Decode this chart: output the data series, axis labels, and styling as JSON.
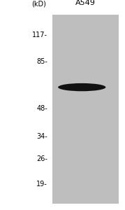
{
  "title": "A549",
  "title_fontsize": 8,
  "kd_label": "(kD)",
  "kd_label_fontsize": 7,
  "markers": [
    117,
    85,
    48,
    34,
    26,
    19
  ],
  "marker_labels": [
    "117-",
    "85-",
    "48-",
    "34-",
    "26-",
    "19-"
  ],
  "marker_fontsize": 7,
  "band_kd": 62,
  "band_color": "#111111",
  "lane_gray": "#bebebe",
  "background_color": "#ffffff",
  "fig_width": 1.79,
  "fig_height": 3.0,
  "dpi": 100
}
